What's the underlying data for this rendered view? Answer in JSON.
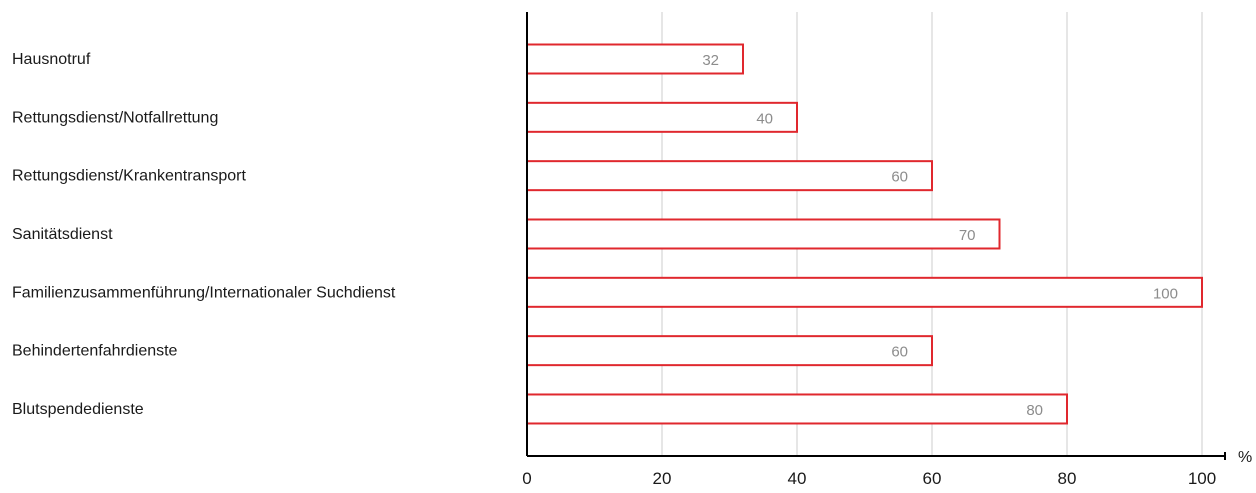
{
  "chart_data": {
    "type": "bar",
    "orientation": "horizontal",
    "categories": [
      "Hausnotruf",
      "Rettungsdienst/Notfallrettung",
      "Rettungsdienst/Krankentransport",
      "Sanitätsdienst",
      "Familienzusammenführung/Internationaler Suchdienst",
      "Behindertenfahrdienste",
      "Blutspendedienste"
    ],
    "values": [
      32,
      40,
      60,
      70,
      100,
      60,
      80
    ],
    "data_labels": [
      "32",
      "40",
      "60",
      "70",
      "100",
      "60",
      "80"
    ],
    "xlim": [
      0,
      100
    ],
    "x_ticks": [
      0,
      20,
      40,
      60,
      80,
      100
    ],
    "x_tick_labels": [
      "0",
      "20",
      "40",
      "60",
      "80",
      "100"
    ],
    "x_unit": "%",
    "grid": "vertical",
    "legend": "none"
  },
  "colors": {
    "bar_stroke": "#e0282e",
    "bar_fill": "#ffffff",
    "grid": "#cccccc",
    "axis": "#000000",
    "data_label": "#8c8c8c",
    "text": "#1a1a1a"
  }
}
